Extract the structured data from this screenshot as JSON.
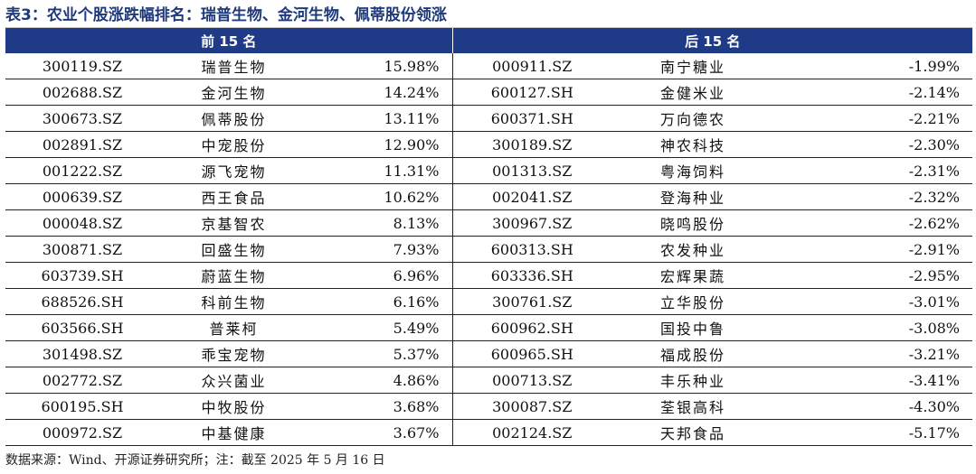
{
  "title": "表3：农业个股涨跌幅排名：瑞普生物、金河生物、佩蒂股份领涨",
  "table": {
    "left_header": "前 15 名",
    "right_header": "后 15 名",
    "left_rows": [
      {
        "code": "300119.SZ",
        "name": "瑞普生物",
        "change": "15.98%"
      },
      {
        "code": "002688.SZ",
        "name": "金河生物",
        "change": "14.24%"
      },
      {
        "code": "300673.SZ",
        "name": "佩蒂股份",
        "change": "13.11%"
      },
      {
        "code": "002891.SZ",
        "name": "中宠股份",
        "change": "12.90%"
      },
      {
        "code": "001222.SZ",
        "name": "源飞宠物",
        "change": "11.31%"
      },
      {
        "code": "000639.SZ",
        "name": "西王食品",
        "change": "10.62%"
      },
      {
        "code": "000048.SZ",
        "name": "京基智农",
        "change": "8.13%"
      },
      {
        "code": "300871.SZ",
        "name": "回盛生物",
        "change": "7.93%"
      },
      {
        "code": "603739.SH",
        "name": "蔚蓝生物",
        "change": "6.96%"
      },
      {
        "code": "688526.SH",
        "name": "科前生物",
        "change": "6.16%"
      },
      {
        "code": "603566.SH",
        "name": "普莱柯",
        "change": "5.49%"
      },
      {
        "code": "301498.SZ",
        "name": "乖宝宠物",
        "change": "5.37%"
      },
      {
        "code": "002772.SZ",
        "name": "众兴菌业",
        "change": "4.86%"
      },
      {
        "code": "600195.SH",
        "name": "中牧股份",
        "change": "3.68%"
      },
      {
        "code": "000972.SZ",
        "name": "中基健康",
        "change": "3.67%"
      }
    ],
    "right_rows": [
      {
        "code": "000911.SZ",
        "name": "南宁糖业",
        "change": "-1.99%"
      },
      {
        "code": "600127.SH",
        "name": "金健米业",
        "change": "-2.14%"
      },
      {
        "code": "600371.SH",
        "name": "万向德农",
        "change": "-2.21%"
      },
      {
        "code": "300189.SZ",
        "name": "神农科技",
        "change": "-2.30%"
      },
      {
        "code": "001313.SZ",
        "name": "粤海饲料",
        "change": "-2.31%"
      },
      {
        "code": "002041.SZ",
        "name": "登海种业",
        "change": "-2.32%"
      },
      {
        "code": "300967.SZ",
        "name": "晓鸣股份",
        "change": "-2.62%"
      },
      {
        "code": "600313.SH",
        "name": "农发种业",
        "change": "-2.91%"
      },
      {
        "code": "603336.SH",
        "name": "宏辉果蔬",
        "change": "-2.95%"
      },
      {
        "code": "300761.SZ",
        "name": "立华股份",
        "change": "-3.01%"
      },
      {
        "code": "600962.SH",
        "name": "国投中鲁",
        "change": "-3.08%"
      },
      {
        "code": "600965.SH",
        "name": "福成股份",
        "change": "-3.21%"
      },
      {
        "code": "000713.SZ",
        "name": "丰乐种业",
        "change": "-3.41%"
      },
      {
        "code": "300087.SZ",
        "name": "荃银高科",
        "change": "-4.30%"
      },
      {
        "code": "002124.SZ",
        "name": "天邦食品",
        "change": "-5.17%"
      }
    ]
  },
  "source": "数据来源：Wind、开源证券研究所；注：截至 2025 年 5 月 16 日"
}
